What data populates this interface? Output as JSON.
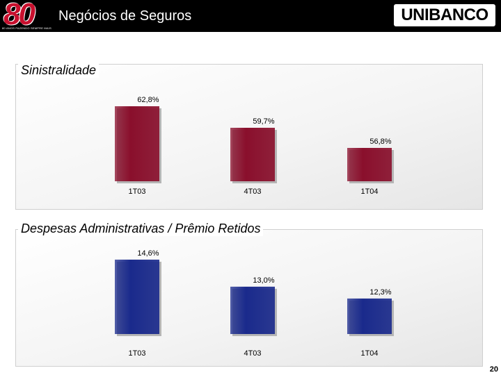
{
  "header": {
    "logo_number": "80",
    "logo_tagline": "80 ANOS FAZENDO SEMPRE MAIS",
    "title": "Negócios de Seguros",
    "brand": "UNIBANCO"
  },
  "page_number": "20",
  "colors": {
    "header_bg": "#000000",
    "chart1_bar": "#8a0f2c",
    "chart2_bar": "#1a2a8c"
  },
  "chart_data": [
    {
      "type": "bar",
      "title": "Sinistralidade",
      "categories": [
        "1T03",
        "4T03",
        "1T04"
      ],
      "values": [
        62.8,
        59.7,
        56.8
      ],
      "value_labels": [
        "62,8%",
        "59,7%",
        "56,8%"
      ],
      "ylim": [
        52,
        64
      ],
      "color": "#8a0f2c"
    },
    {
      "type": "bar",
      "title": "Despesas Administrativas / Prêmio Retidos",
      "categories": [
        "1T03",
        "4T03",
        "1T04"
      ],
      "values": [
        14.6,
        13.0,
        12.3
      ],
      "value_labels": [
        "14,6%",
        "13,0%",
        "12,3%"
      ],
      "ylim": [
        10.2,
        14.8
      ],
      "color": "#1a2a8c"
    }
  ]
}
